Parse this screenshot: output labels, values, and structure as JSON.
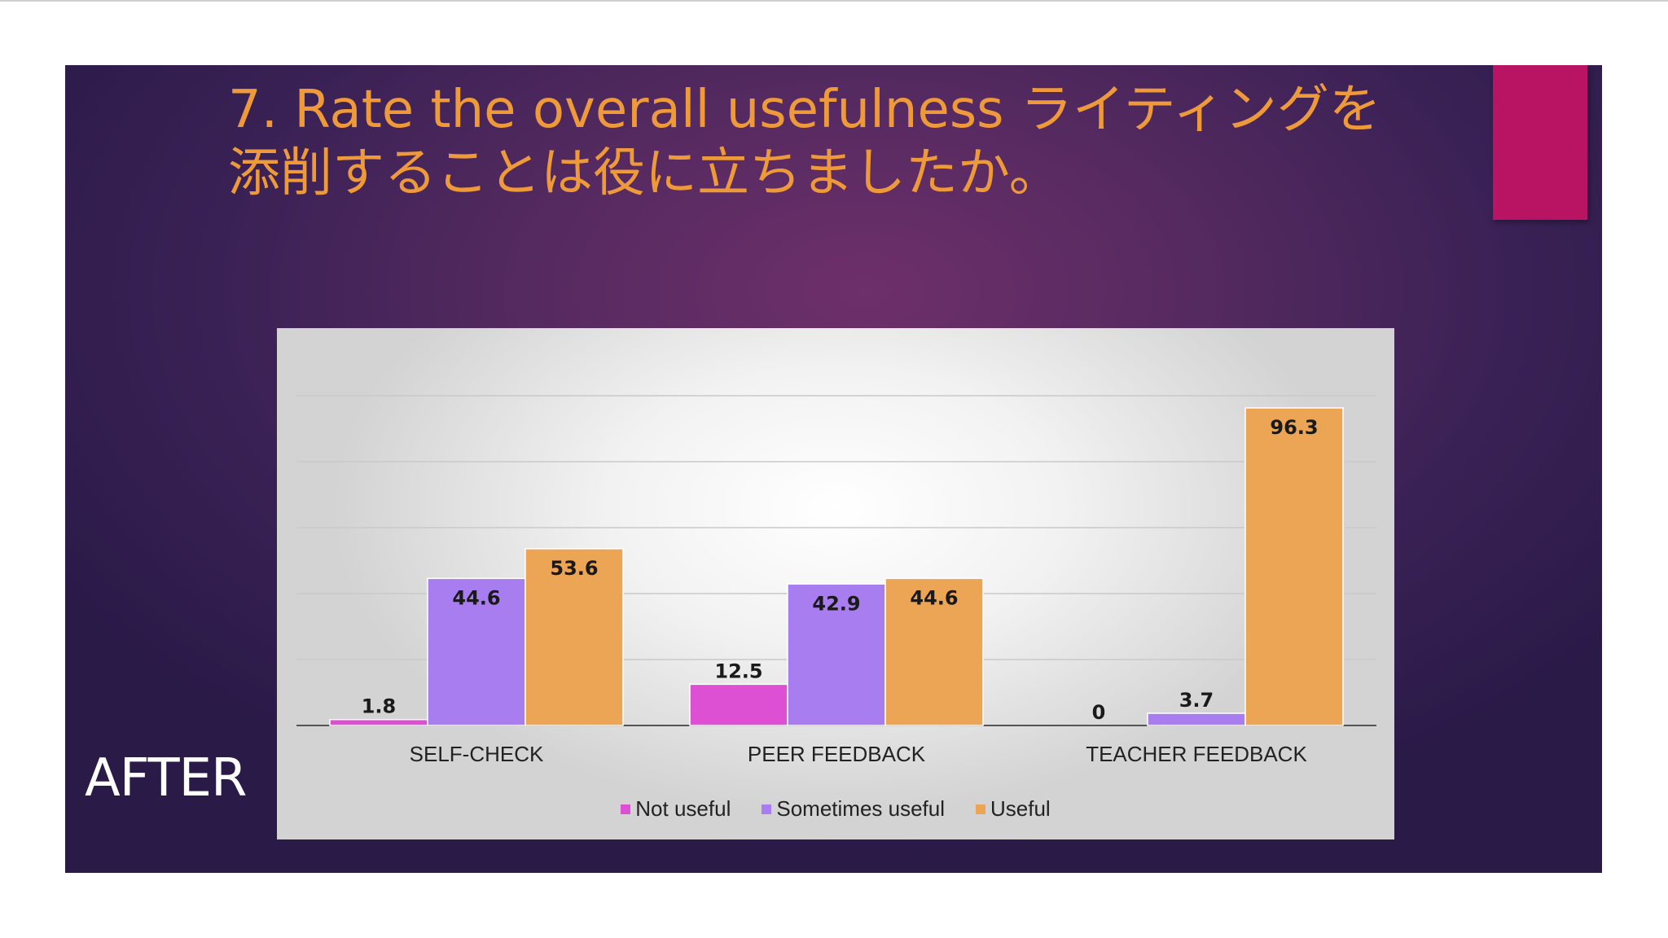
{
  "slide": {
    "title_line1": "7. Rate the overall usefulness ライティングを",
    "title_line2": "添削することは役に立ちましたか。",
    "side_label": "AFTER"
  },
  "colors": {
    "background_dark": "#2a1a48",
    "accent_bar": "#b81463",
    "title_text": "#ef9a3a"
  },
  "chart_data": {
    "type": "bar",
    "title": "",
    "xlabel": "",
    "ylabel": "",
    "ylim": [
      0,
      100
    ],
    "grid": true,
    "legend_position": "bottom",
    "categories": [
      "SELF-CHECK",
      "PEER FEEDBACK",
      "TEACHER FEEDBACK"
    ],
    "series": [
      {
        "name": "Not useful",
        "color": "#dd4fd3",
        "values": [
          1.8,
          12.5,
          0
        ]
      },
      {
        "name": "Sometimes useful",
        "color": "#a77df0",
        "values": [
          44.6,
          42.9,
          3.7
        ]
      },
      {
        "name": "Useful",
        "color": "#eca455",
        "values": [
          53.6,
          44.6,
          96.3
        ]
      }
    ]
  }
}
